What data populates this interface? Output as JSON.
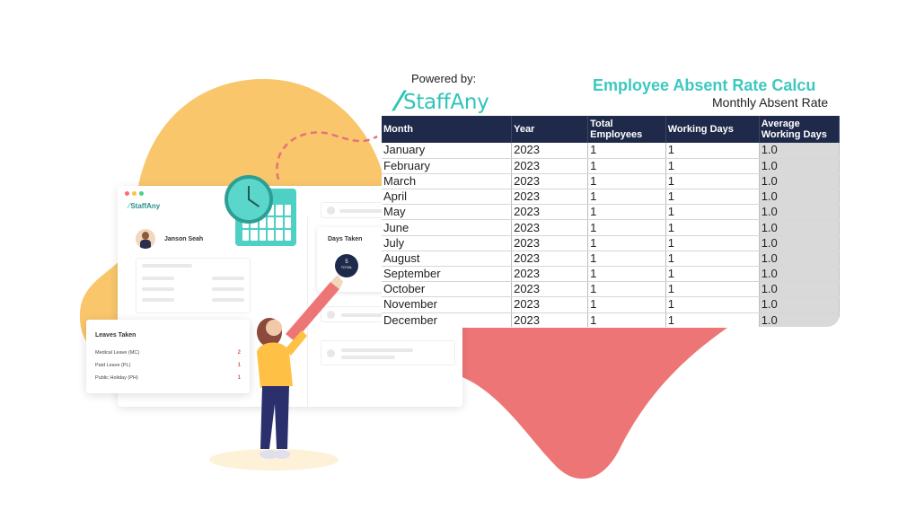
{
  "app_mockup": {
    "logo_text": "StaffAny",
    "profile_name": "Janson Seah",
    "days_taken": {
      "title": "Days Taken",
      "value": "5",
      "unit": "TOTAL"
    },
    "leaves": {
      "title": "Leaves Taken",
      "items": [
        {
          "label": "Medical Leave (MC)",
          "value": "2"
        },
        {
          "label": "Paid Leave (PL)",
          "value": "1"
        },
        {
          "label": "Public Holiday (PH)",
          "value": "1"
        }
      ]
    }
  },
  "sheet": {
    "powered_by": "Powered by:",
    "brand_name": "StaffAny",
    "title": "Employee Absent Rate Calcu",
    "subtitle": "Monthly Absent Rate",
    "columns": [
      "Month",
      "Year",
      "Total Employees",
      "Working Days",
      "Average Working Days"
    ],
    "rows": [
      [
        "January",
        "2023",
        "1",
        "1",
        "1.0"
      ],
      [
        "February",
        "2023",
        "1",
        "1",
        "1.0"
      ],
      [
        "March",
        "2023",
        "1",
        "1",
        "1.0"
      ],
      [
        "April",
        "2023",
        "1",
        "1",
        "1.0"
      ],
      [
        "May",
        "2023",
        "1",
        "1",
        "1.0"
      ],
      [
        "June",
        "2023",
        "1",
        "1",
        "1.0"
      ],
      [
        "July",
        "2023",
        "1",
        "1",
        "1.0"
      ],
      [
        "August",
        "2023",
        "1",
        "1",
        "1.0"
      ],
      [
        "September",
        "2023",
        "1",
        "1",
        "1.0"
      ],
      [
        "October",
        "2023",
        "1",
        "1",
        "1.0"
      ],
      [
        "November",
        "2023",
        "1",
        "1",
        "1.0"
      ],
      [
        "December",
        "2023",
        "1",
        "1",
        "1.0"
      ]
    ]
  },
  "colors": {
    "accent_teal": "#3cc9bf",
    "header_navy": "#1f2a4a",
    "blob_yellow": "#f9c66b",
    "blob_coral": "#ee7575"
  }
}
